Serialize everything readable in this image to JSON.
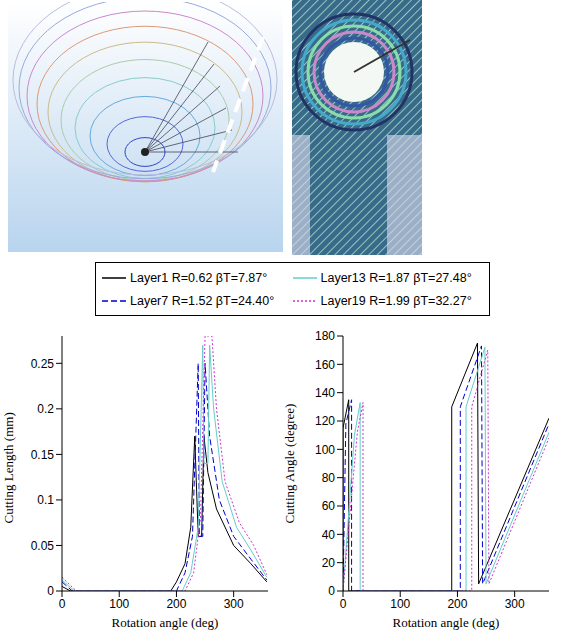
{
  "chart_data": [
    {
      "type": "line",
      "xlabel": "Rotation angle (deg)",
      "ylabel": "Cutting Length (mm)",
      "xlim": [
        0,
        360
      ],
      "xticks": [
        0,
        100,
        200,
        300
      ],
      "ylim": [
        0,
        0.28
      ],
      "yticks": [
        0,
        0.05,
        0.1,
        0.15,
        0.2,
        0.25
      ],
      "legend": "top",
      "series": [
        {
          "name": "Layer1 R=0.62 βT=7.87°",
          "color": "#000000",
          "line_style": "solid",
          "x": [
            0,
            15,
            190,
            200,
            215,
            225,
            232,
            238,
            244,
            248,
            255,
            270,
            300,
            330,
            358
          ],
          "values": [
            0.005,
            0,
            0,
            0.01,
            0.03,
            0.07,
            0.17,
            0.06,
            0.06,
            0.17,
            0.13,
            0.09,
            0.05,
            0.03,
            0.01
          ]
        },
        {
          "name": "Layer7 R=1.52 βT=24.40°",
          "color": "#0000cc",
          "line_style": "dashed",
          "x": [
            0,
            18,
            200,
            215,
            228,
            238,
            240,
            246,
            250,
            258,
            275,
            300,
            330,
            358
          ],
          "values": [
            0.01,
            0,
            0,
            0.02,
            0.06,
            0.25,
            0.06,
            0.06,
            0.25,
            0.17,
            0.1,
            0.06,
            0.035,
            0.012
          ]
        },
        {
          "name": "Layer13 R=1.87 βT=27.48°",
          "color": "#66cccc",
          "line_style": "solid",
          "x": [
            0,
            22,
            210,
            225,
            238,
            246,
            248,
            255,
            258,
            265,
            280,
            305,
            330,
            358
          ],
          "values": [
            0.012,
            0,
            0,
            0.02,
            0.07,
            0.27,
            0.14,
            0.14,
            0.27,
            0.2,
            0.12,
            0.07,
            0.045,
            0.015
          ]
        },
        {
          "name": "Layer19 R=1.99 βT=32.27°",
          "color": "#cc33cc",
          "line_style": "dotted",
          "x": [
            0,
            25,
            215,
            230,
            242,
            250,
            256,
            262,
            270,
            285,
            310,
            335,
            358
          ],
          "values": [
            0.015,
            0,
            0,
            0.02,
            0.08,
            0.28,
            0.28,
            0.28,
            0.2,
            0.12,
            0.075,
            0.05,
            0.018
          ]
        }
      ]
    },
    {
      "type": "line",
      "xlabel": "Rotation angle (deg)",
      "ylabel": "Cutting Angle (degree)",
      "xlim": [
        0,
        360
      ],
      "xticks": [
        0,
        100,
        200,
        300
      ],
      "ylim": [
        0,
        180
      ],
      "yticks": [
        0,
        20,
        40,
        60,
        80,
        100,
        120,
        140,
        160,
        180
      ],
      "legend": "top",
      "series": [
        {
          "name": "Layer1 R=0.62 βT=7.87°",
          "color": "#000000",
          "line_style": "solid",
          "x": [
            0,
            0,
            10,
            10,
            190,
            190,
            235,
            237,
            360
          ],
          "values": [
            0,
            115,
            135,
            0,
            0,
            130,
            175,
            5,
            122
          ]
        },
        {
          "name": "Layer7 R=1.52 βT=24.40°",
          "color": "#0000cc",
          "line_style": "dashed",
          "x": [
            0,
            5,
            15,
            15,
            205,
            205,
            242,
            244,
            360
          ],
          "values": [
            0,
            118,
            135,
            0,
            0,
            130,
            173,
            5,
            118
          ]
        },
        {
          "name": "Layer13 R=1.87 βT=27.48°",
          "color": "#66cccc",
          "line_style": "solid",
          "x": [
            0,
            20,
            30,
            30,
            215,
            215,
            248,
            250,
            360
          ],
          "values": [
            0,
            110,
            133,
            0,
            0,
            130,
            172,
            5,
            112
          ]
        },
        {
          "name": "Layer19 R=1.99 βT=32.27°",
          "color": "#cc33cc",
          "line_style": "dotted",
          "x": [
            0,
            25,
            35,
            35,
            225,
            225,
            253,
            255,
            360
          ],
          "values": [
            0,
            112,
            133,
            0,
            0,
            130,
            170,
            5,
            108
          ]
        }
      ]
    }
  ]
}
